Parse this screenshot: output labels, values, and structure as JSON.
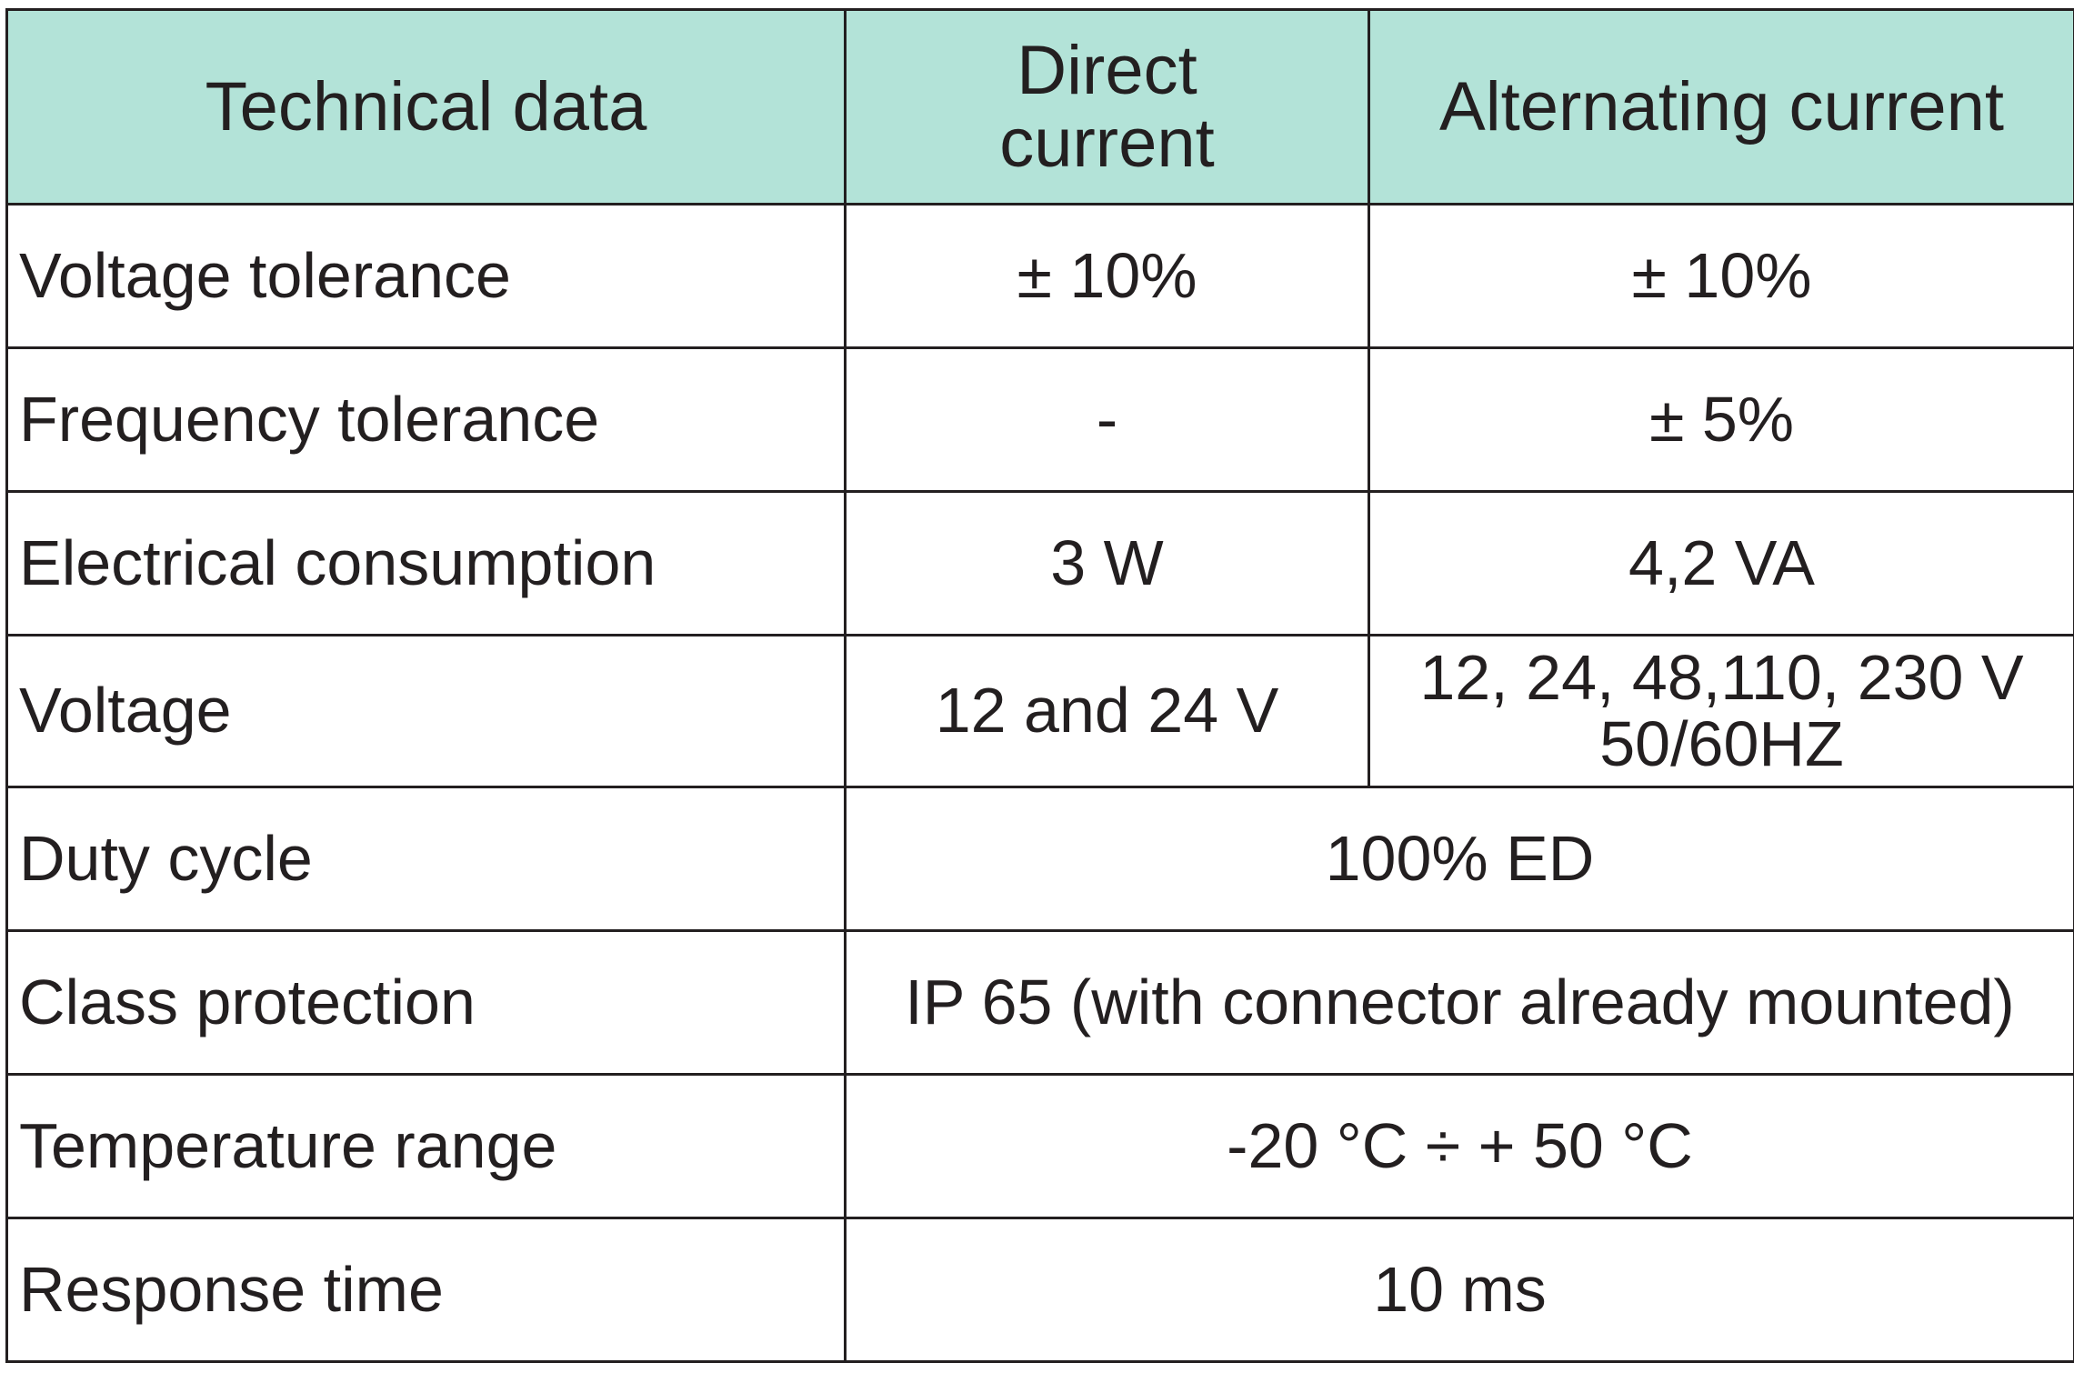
{
  "header": {
    "col1": "Technical data",
    "col2_line1": "Direct",
    "col2_line2": "current",
    "col3": "Alternating current"
  },
  "rows": [
    {
      "label": "Voltage tolerance",
      "dc": "± 10%",
      "ac": "± 10%"
    },
    {
      "label": "Frequency tolerance",
      "dc": "-",
      "ac": "± 5%"
    },
    {
      "label": "Electrical consumption",
      "dc": "3 W",
      "ac": "4,2 VA"
    },
    {
      "label": "Voltage",
      "dc": "12 and 24 V",
      "ac_line1": "12, 24, 48,110, 230 V",
      "ac_line2": "50/60HZ"
    },
    {
      "label": "Duty cycle",
      "both": "100% ED"
    },
    {
      "label": "Class protection",
      "both": "IP 65 (with connector already mounted)"
    },
    {
      "label": "Temperature range",
      "both": "-20 °C ÷ + 50 °C"
    },
    {
      "label": "Response time",
      "both": "10 ms"
    }
  ],
  "colors": {
    "header_bg": "#b3e3d8",
    "border": "#231f20",
    "text": "#231f20"
  }
}
